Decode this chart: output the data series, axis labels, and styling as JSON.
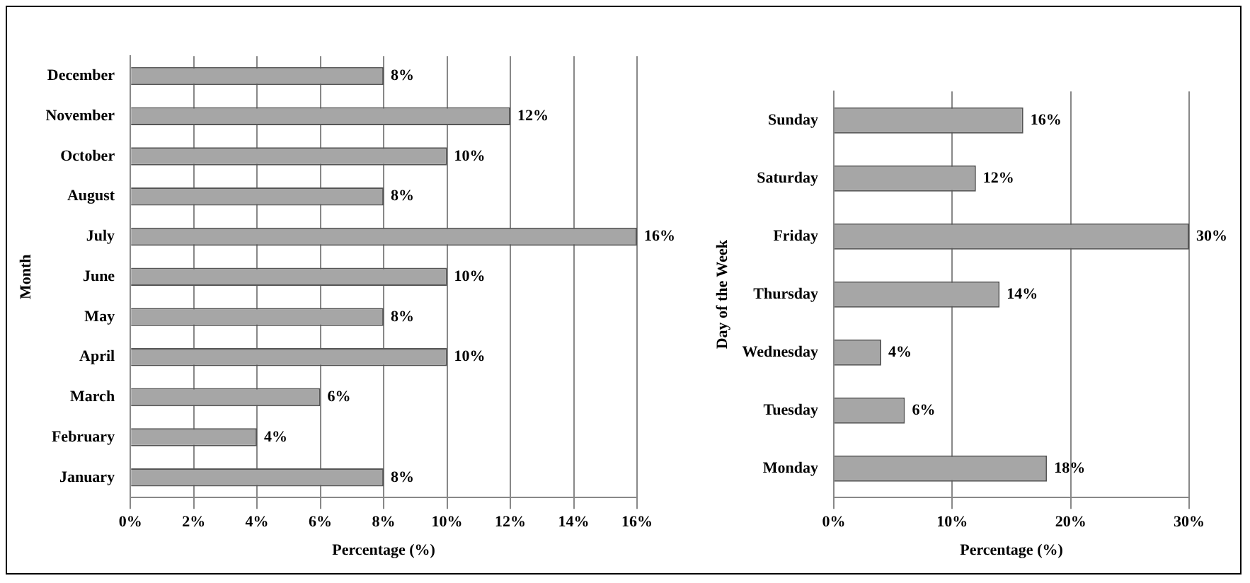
{
  "chart_data": [
    {
      "type": "bar",
      "orientation": "horizontal",
      "ylabel": "Month",
      "xlabel": "Percentage (%)",
      "categories": [
        "December",
        "November",
        "October",
        "August",
        "July",
        "June",
        "May",
        "April",
        "March",
        "February",
        "January"
      ],
      "values": [
        8,
        12,
        10,
        8,
        16,
        10,
        8,
        10,
        6,
        4,
        8
      ],
      "color": "#a6a6a6",
      "value_labels": [
        "8%",
        "12%",
        "10%",
        "8%",
        "16%",
        "10%",
        "8%",
        "10%",
        "6%",
        "4%",
        "8%"
      ],
      "xlim": [
        0,
        16
      ],
      "xticks": [
        {
          "value": 0,
          "label": "0%"
        },
        {
          "value": 2,
          "label": "2%"
        },
        {
          "value": 4,
          "label": "4%"
        },
        {
          "value": 6,
          "label": "6%"
        },
        {
          "value": 8,
          "label": "8%"
        },
        {
          "value": 10,
          "label": "10%"
        },
        {
          "value": 12,
          "label": "12%"
        },
        {
          "value": 14,
          "label": "14%"
        },
        {
          "value": 16,
          "label": "16%"
        }
      ],
      "grid": "x",
      "legend": false
    },
    {
      "type": "bar",
      "orientation": "horizontal",
      "ylabel": "Day of the Week",
      "xlabel": "Percentage (%)",
      "categories": [
        "Sunday",
        "Saturday",
        "Friday",
        "Thursday",
        "Wednesday",
        "Tuesday",
        "Monday"
      ],
      "values": [
        16,
        12,
        30,
        14,
        4,
        6,
        18
      ],
      "color": "#a6a6a6",
      "value_labels": [
        "16%",
        "12%",
        "30%",
        "14%",
        "4%",
        "6%",
        "18%"
      ],
      "xlim": [
        0,
        30
      ],
      "xticks": [
        {
          "value": 0,
          "label": "0%"
        },
        {
          "value": 10,
          "label": "10%"
        },
        {
          "value": 20,
          "label": "20%"
        },
        {
          "value": 30,
          "label": "30%"
        }
      ],
      "grid": "x",
      "legend": false
    }
  ]
}
